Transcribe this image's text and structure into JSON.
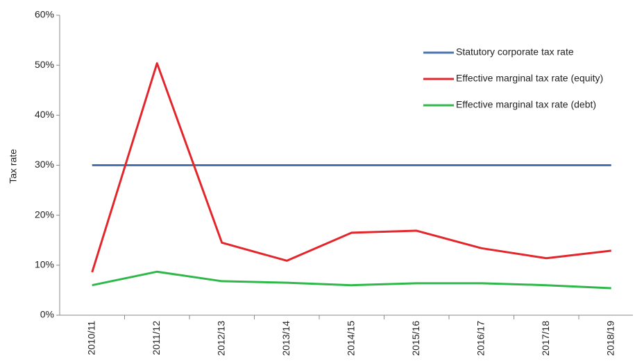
{
  "chart_data": {
    "type": "line",
    "y_label": "Tax rate",
    "categories": [
      "2010/11",
      "2011/12",
      "2012/13",
      "2013/14",
      "2014/15",
      "2015/16",
      "2016/17",
      "2017/18",
      "2018/19"
    ],
    "series": [
      {
        "name": "Statutory corporate tax rate",
        "color": "#4a72b0",
        "values": [
          30,
          30,
          30,
          30,
          30,
          30,
          30,
          30,
          30
        ]
      },
      {
        "name": "Effective marginal tax rate (equity)",
        "color": "#e3262b",
        "values": [
          8.6,
          50.4,
          14.5,
          10.9,
          16.5,
          16.9,
          13.4,
          11.4,
          12.9
        ]
      },
      {
        "name": "Effective marginal tax rate (debt)",
        "color": "#2fb84a",
        "values": [
          6.0,
          8.7,
          6.8,
          6.5,
          6.0,
          6.4,
          6.4,
          6.0,
          5.4
        ]
      }
    ],
    "ylim": [
      0,
      60
    ],
    "yticks": [
      {
        "value": 0,
        "label": "0%"
      },
      {
        "value": 10,
        "label": "10%"
      },
      {
        "value": 20,
        "label": "20%"
      },
      {
        "value": 30,
        "label": "30%"
      },
      {
        "value": 40,
        "label": "40%"
      },
      {
        "value": 50,
        "label": "50%"
      },
      {
        "value": 60,
        "label": "60%"
      }
    ],
    "legend": "upper right"
  }
}
